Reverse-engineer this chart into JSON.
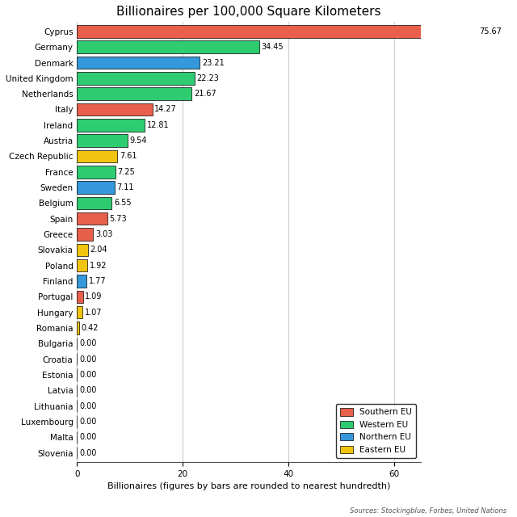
{
  "title": "Billionaires per 100,000 Square Kilometers",
  "xlabel": "Billionaires (figures by bars are rounded to nearest hundredth)",
  "source": "Sources: Stockingblue, Forbes, United Nations",
  "countries": [
    "Cyprus",
    "Germany",
    "Denmark",
    "United Kingdom",
    "Netherlands",
    "Italy",
    "Ireland",
    "Austria",
    "Czech Republic",
    "France",
    "Sweden",
    "Belgium",
    "Spain",
    "Greece",
    "Slovakia",
    "Poland",
    "Finland",
    "Portugal",
    "Hungary",
    "Romania",
    "Bulgaria",
    "Croatia",
    "Estonia",
    "Latvia",
    "Lithuania",
    "Luxembourg",
    "Malta",
    "Slovenia"
  ],
  "values": [
    75.67,
    34.45,
    23.21,
    22.23,
    21.67,
    14.27,
    12.81,
    9.54,
    7.61,
    7.25,
    7.11,
    6.55,
    5.73,
    3.03,
    2.04,
    1.92,
    1.77,
    1.09,
    1.07,
    0.42,
    0.0,
    0.0,
    0.0,
    0.0,
    0.0,
    0.0,
    0.0,
    0.0
  ],
  "colors": [
    "#E8604C",
    "#2ECC71",
    "#3498DB",
    "#2ECC71",
    "#2ECC71",
    "#E8604C",
    "#2ECC71",
    "#2ECC71",
    "#F1C40F",
    "#2ECC71",
    "#3498DB",
    "#2ECC71",
    "#E8604C",
    "#E8604C",
    "#F1C40F",
    "#F1C40F",
    "#3498DB",
    "#E8604C",
    "#F1C40F",
    "#F1C40F",
    "#F1C40F",
    "#E8604C",
    "#3498DB",
    "#3498DB",
    "#3498DB",
    "#2ECC71",
    "#E8604C",
    "#E8604C"
  ],
  "legend_labels": [
    "Southern EU",
    "Western EU",
    "Northern EU",
    "Eastern EU"
  ],
  "legend_colors": [
    "#E8604C",
    "#2ECC71",
    "#3498DB",
    "#F1C40F"
  ],
  "xlim": [
    0,
    65
  ],
  "xticks": [
    0,
    20,
    40,
    60
  ],
  "bar_edge_color": "#000000",
  "grid_color": "#CCCCCC",
  "background_color": "#FFFFFF",
  "title_fontsize": 11,
  "label_fontsize": 8,
  "tick_fontsize": 7.5,
  "value_fontsize": 7
}
